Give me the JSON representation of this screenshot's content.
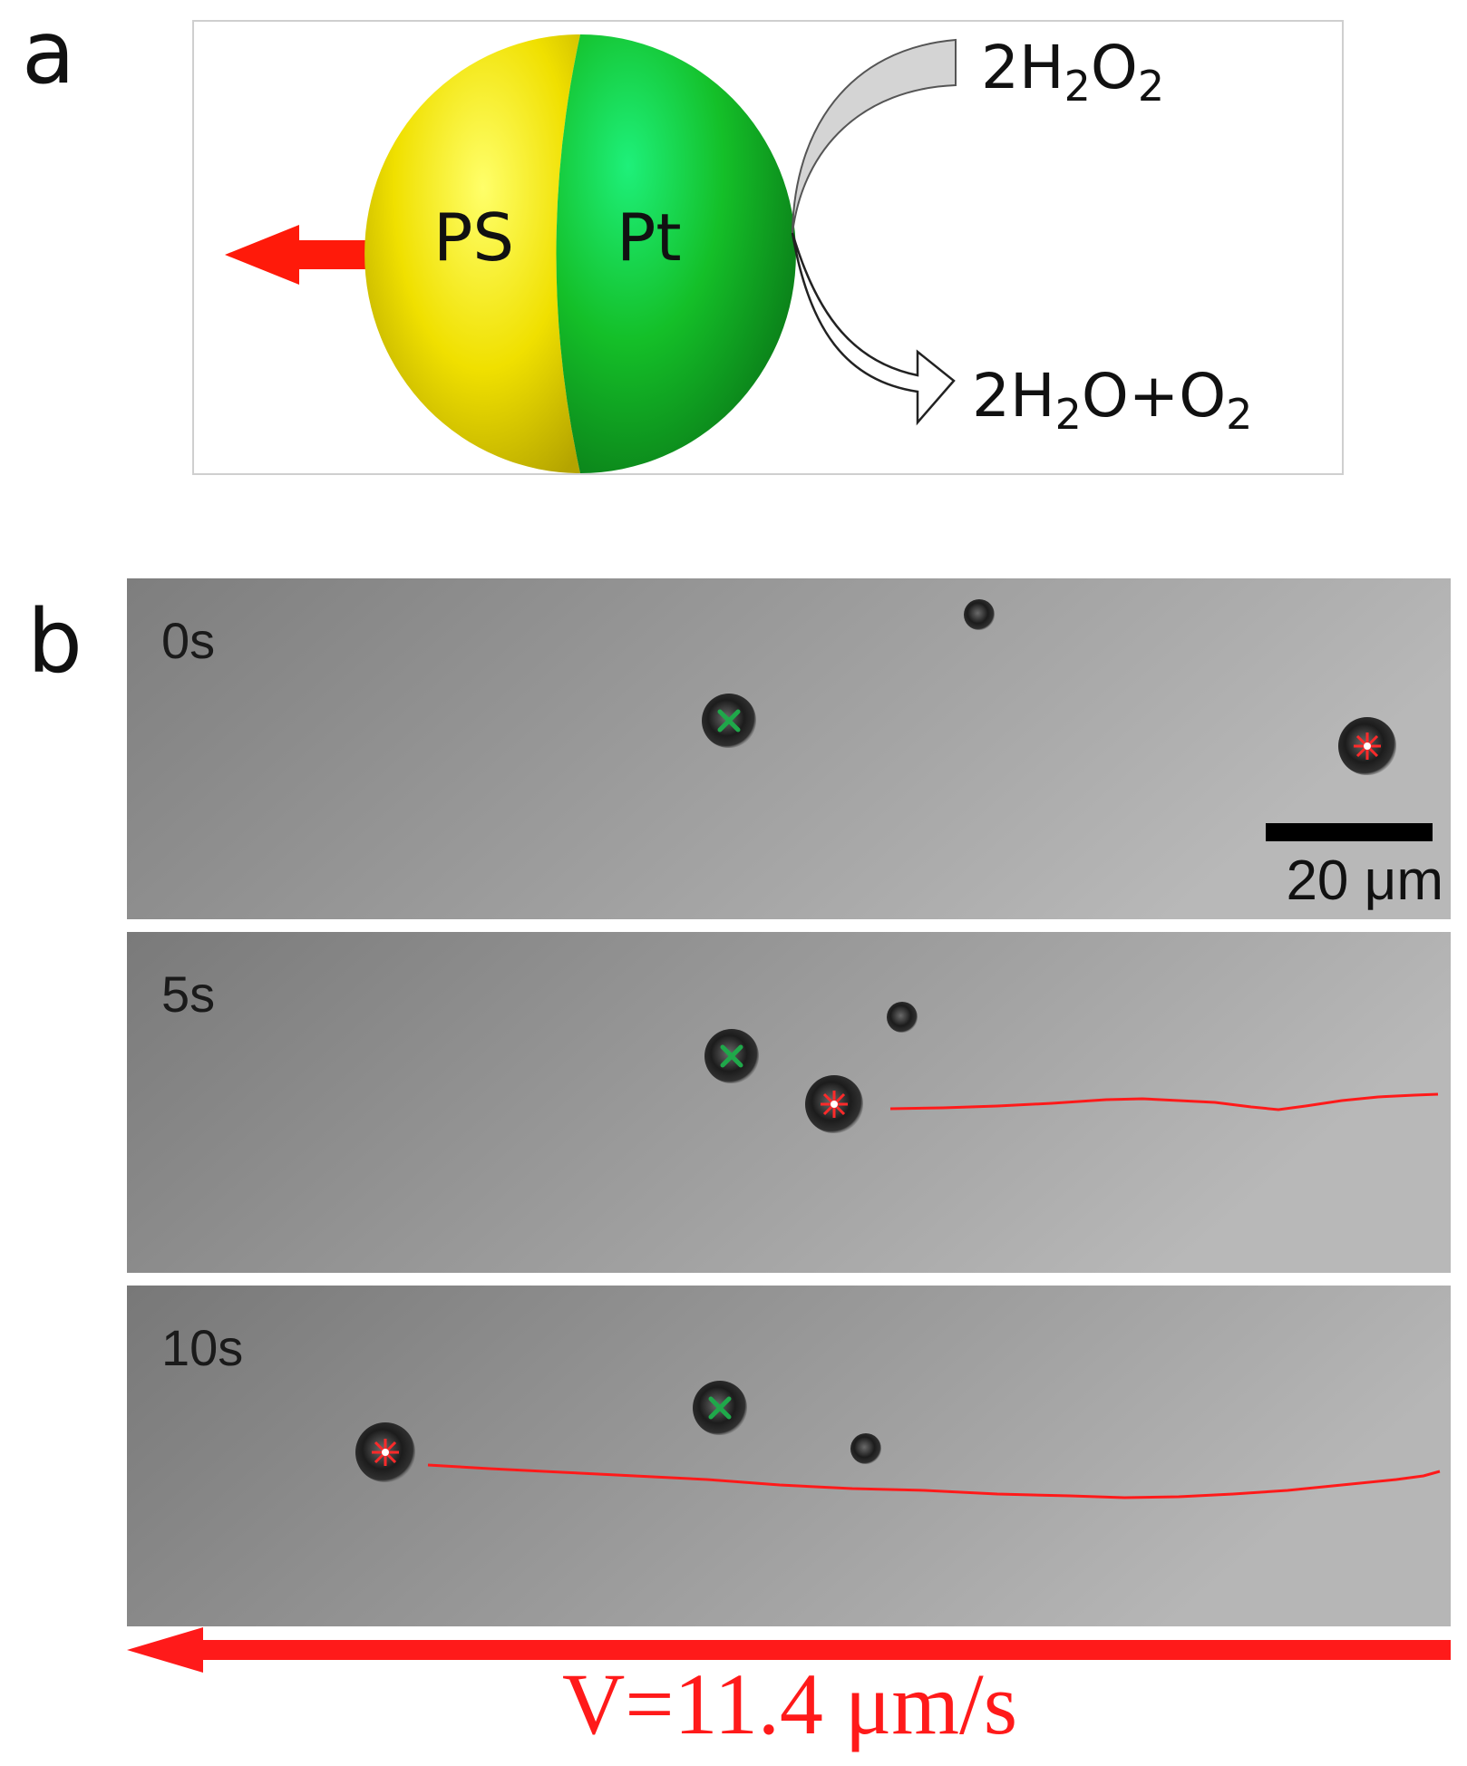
{
  "panel_a": {
    "letter": "a",
    "left_hemisphere_label": "PS",
    "right_hemisphere_label": "Pt",
    "reactant": {
      "coef": "2",
      "el1": "H",
      "n1": "2",
      "el2": "O",
      "n2": "2"
    },
    "products": {
      "coef": "2",
      "el1": "H",
      "n1": "2",
      "el2": "O",
      "plus": "+",
      "el3": "O",
      "n3": "2"
    },
    "colors": {
      "ps": "#f2e600",
      "pt": "#12b81e",
      "arrow": "#ff1a0a"
    }
  },
  "panel_b": {
    "letter": "b",
    "frames": [
      {
        "time": "0s"
      },
      {
        "time": "5s"
      },
      {
        "time": "10s"
      }
    ],
    "scale_bar_label": "20 μm",
    "velocity_label": "V=11.4 μm/s",
    "colors": {
      "trajectory": "#ff1a1a",
      "tracker_green": "#1fa84a"
    }
  }
}
